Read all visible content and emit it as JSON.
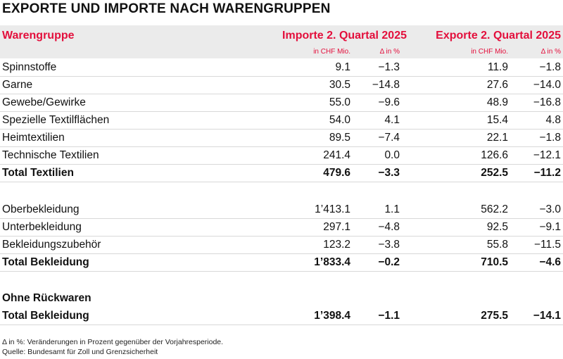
{
  "title": "EXPORTE UND IMPORTE NACH WARENGRUPPEN",
  "header": {
    "group_label": "Warengruppe",
    "imports_label": "Importe 2. Quartal 2025",
    "exports_label": "Exporte 2. Quartal 2025",
    "imp_unit": "in CHF Mio.",
    "imp_delta": "Δ in %",
    "exp_unit": "in CHF Mio.",
    "exp_delta": "Δ in %"
  },
  "rows": [
    {
      "label": "Spinnstoffe",
      "imp": "9.1",
      "impd": "−1.3",
      "exp": "11.9",
      "expd": "−1.8"
    },
    {
      "label": "Garne",
      "imp": "30.5",
      "impd": "−14.8",
      "exp": "27.6",
      "expd": "−14.0"
    },
    {
      "label": "Gewebe/Gewirke",
      "imp": "55.0",
      "impd": "−9.6",
      "exp": "48.9",
      "expd": "−16.8"
    },
    {
      "label": "Spezielle Textilflächen",
      "imp": "54.0",
      "impd": "4.1",
      "exp": "15.4",
      "expd": "4.8"
    },
    {
      "label": "Heimtextilien",
      "imp": "89.5",
      "impd": "−7.4",
      "exp": "22.1",
      "expd": "−1.8"
    },
    {
      "label": "Technische Textilien",
      "imp": "241.4",
      "impd": "0.0",
      "exp": "126.6",
      "expd": "−12.1"
    },
    {
      "label": "Total Textilien",
      "imp": "479.6",
      "impd": "−3.3",
      "exp": "252.5",
      "expd": "−11.2"
    },
    {
      "label": "Oberbekleidung",
      "imp": "1’413.1",
      "impd": "1.1",
      "exp": "562.2",
      "expd": "−3.0"
    },
    {
      "label": "Unterbekleidung",
      "imp": "297.1",
      "impd": "−4.8",
      "exp": "92.5",
      "expd": "−9.1"
    },
    {
      "label": "Bekleidungszubehör",
      "imp": "123.2",
      "impd": "−3.8",
      "exp": "55.8",
      "expd": "−11.5"
    },
    {
      "label": "Total Bekleidung",
      "imp": "1’833.4",
      "impd": "−0.2",
      "exp": "710.5",
      "expd": "−4.6"
    },
    {
      "label": "Ohne Rückwaren"
    },
    {
      "label": "Total Bekleidung",
      "imp": "1’398.4",
      "impd": "−1.1",
      "exp": "275.5",
      "expd": "−14.1"
    }
  ],
  "footnotes": {
    "delta_note": "Δ in %: Veränderungen in Prozent gegenüber der Vorjahresperiode.",
    "source": "Quelle: Bundesamt für Zoll und Grenzsicherheit"
  }
}
